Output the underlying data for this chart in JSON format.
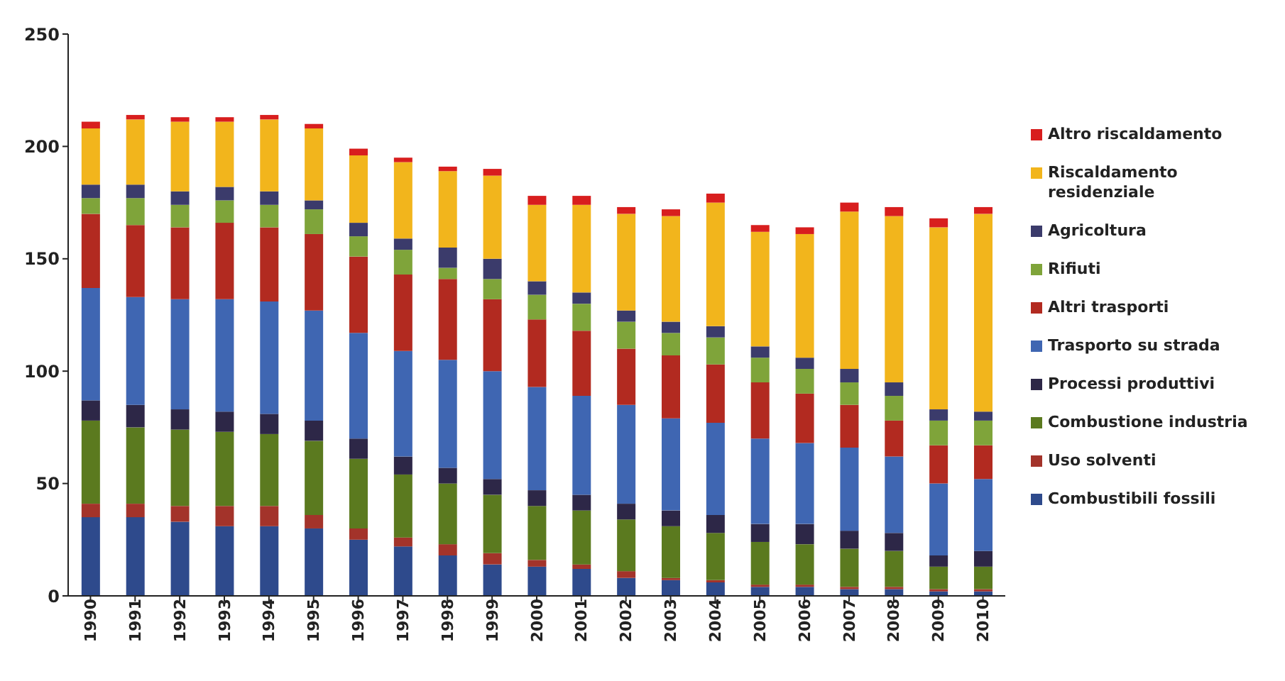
{
  "chart_data": {
    "type": "bar",
    "stacked": true,
    "legend": "right",
    "grid": false,
    "categories": [
      "1990",
      "1991",
      "1992",
      "1993",
      "1994",
      "1995",
      "1996",
      "1997",
      "1998",
      "1999",
      "2000",
      "2001",
      "2002",
      "2003",
      "2004",
      "2005",
      "2006",
      "2007",
      "2008",
      "2009",
      "2010"
    ],
    "ylim": [
      0,
      250
    ],
    "yticks": [
      0,
      50,
      100,
      150,
      200,
      250
    ],
    "series": [
      {
        "name": "Combustibili fossili",
        "color": "#2e4a8c",
        "values": [
          35,
          35,
          33,
          31,
          31,
          30,
          25,
          22,
          18,
          14,
          13,
          12,
          8,
          7,
          6,
          4,
          4,
          3,
          3,
          2,
          2
        ]
      },
      {
        "name": "Uso solventi",
        "color": "#a3332a",
        "values": [
          6,
          6,
          7,
          9,
          9,
          6,
          5,
          4,
          5,
          5,
          3,
          2,
          3,
          1,
          1,
          1,
          1,
          1,
          1,
          1,
          1
        ]
      },
      {
        "name": "Combustione industria",
        "color": "#5b7a1f",
        "values": [
          37,
          34,
          34,
          33,
          32,
          33,
          31,
          28,
          27,
          26,
          24,
          24,
          23,
          23,
          21,
          19,
          18,
          17,
          16,
          10,
          10
        ]
      },
      {
        "name": "Processi produttivi",
        "color": "#2d2747",
        "values": [
          9,
          10,
          9,
          9,
          9,
          9,
          9,
          8,
          7,
          7,
          7,
          7,
          7,
          7,
          8,
          8,
          9,
          8,
          8,
          5,
          7
        ]
      },
      {
        "name": "Trasporto su strada",
        "color": "#3f66b2",
        "values": [
          50,
          48,
          49,
          50,
          50,
          49,
          47,
          47,
          48,
          48,
          46,
          44,
          44,
          41,
          41,
          38,
          36,
          37,
          34,
          32,
          32
        ]
      },
      {
        "name": "Altri trasporti",
        "color": "#b22a20",
        "values": [
          33,
          32,
          32,
          34,
          33,
          34,
          34,
          34,
          36,
          32,
          30,
          29,
          25,
          28,
          26,
          25,
          22,
          19,
          16,
          17,
          15
        ]
      },
      {
        "name": "Rifiuti",
        "color": "#7fa43a",
        "values": [
          7,
          12,
          10,
          10,
          10,
          11,
          9,
          11,
          5,
          9,
          11,
          12,
          12,
          10,
          12,
          11,
          11,
          10,
          11,
          11,
          11
        ]
      },
      {
        "name": "Agricoltura",
        "color": "#3b3b6b",
        "values": [
          6,
          6,
          6,
          6,
          6,
          4,
          6,
          5,
          9,
          9,
          6,
          5,
          5,
          5,
          5,
          5,
          5,
          6,
          6,
          5,
          4
        ]
      },
      {
        "name": "Riscaldamento residenziale",
        "color": "#f2b51c",
        "values": [
          25,
          29,
          31,
          29,
          32,
          32,
          30,
          34,
          34,
          37,
          34,
          39,
          43,
          47,
          55,
          51,
          55,
          70,
          74,
          81,
          88
        ]
      },
      {
        "name": "Altro riscaldamento",
        "color": "#d81e1e",
        "values": [
          3,
          2,
          2,
          2,
          2,
          2,
          3,
          2,
          2,
          3,
          4,
          4,
          3,
          3,
          4,
          3,
          3,
          4,
          4,
          4,
          3
        ]
      }
    ]
  }
}
